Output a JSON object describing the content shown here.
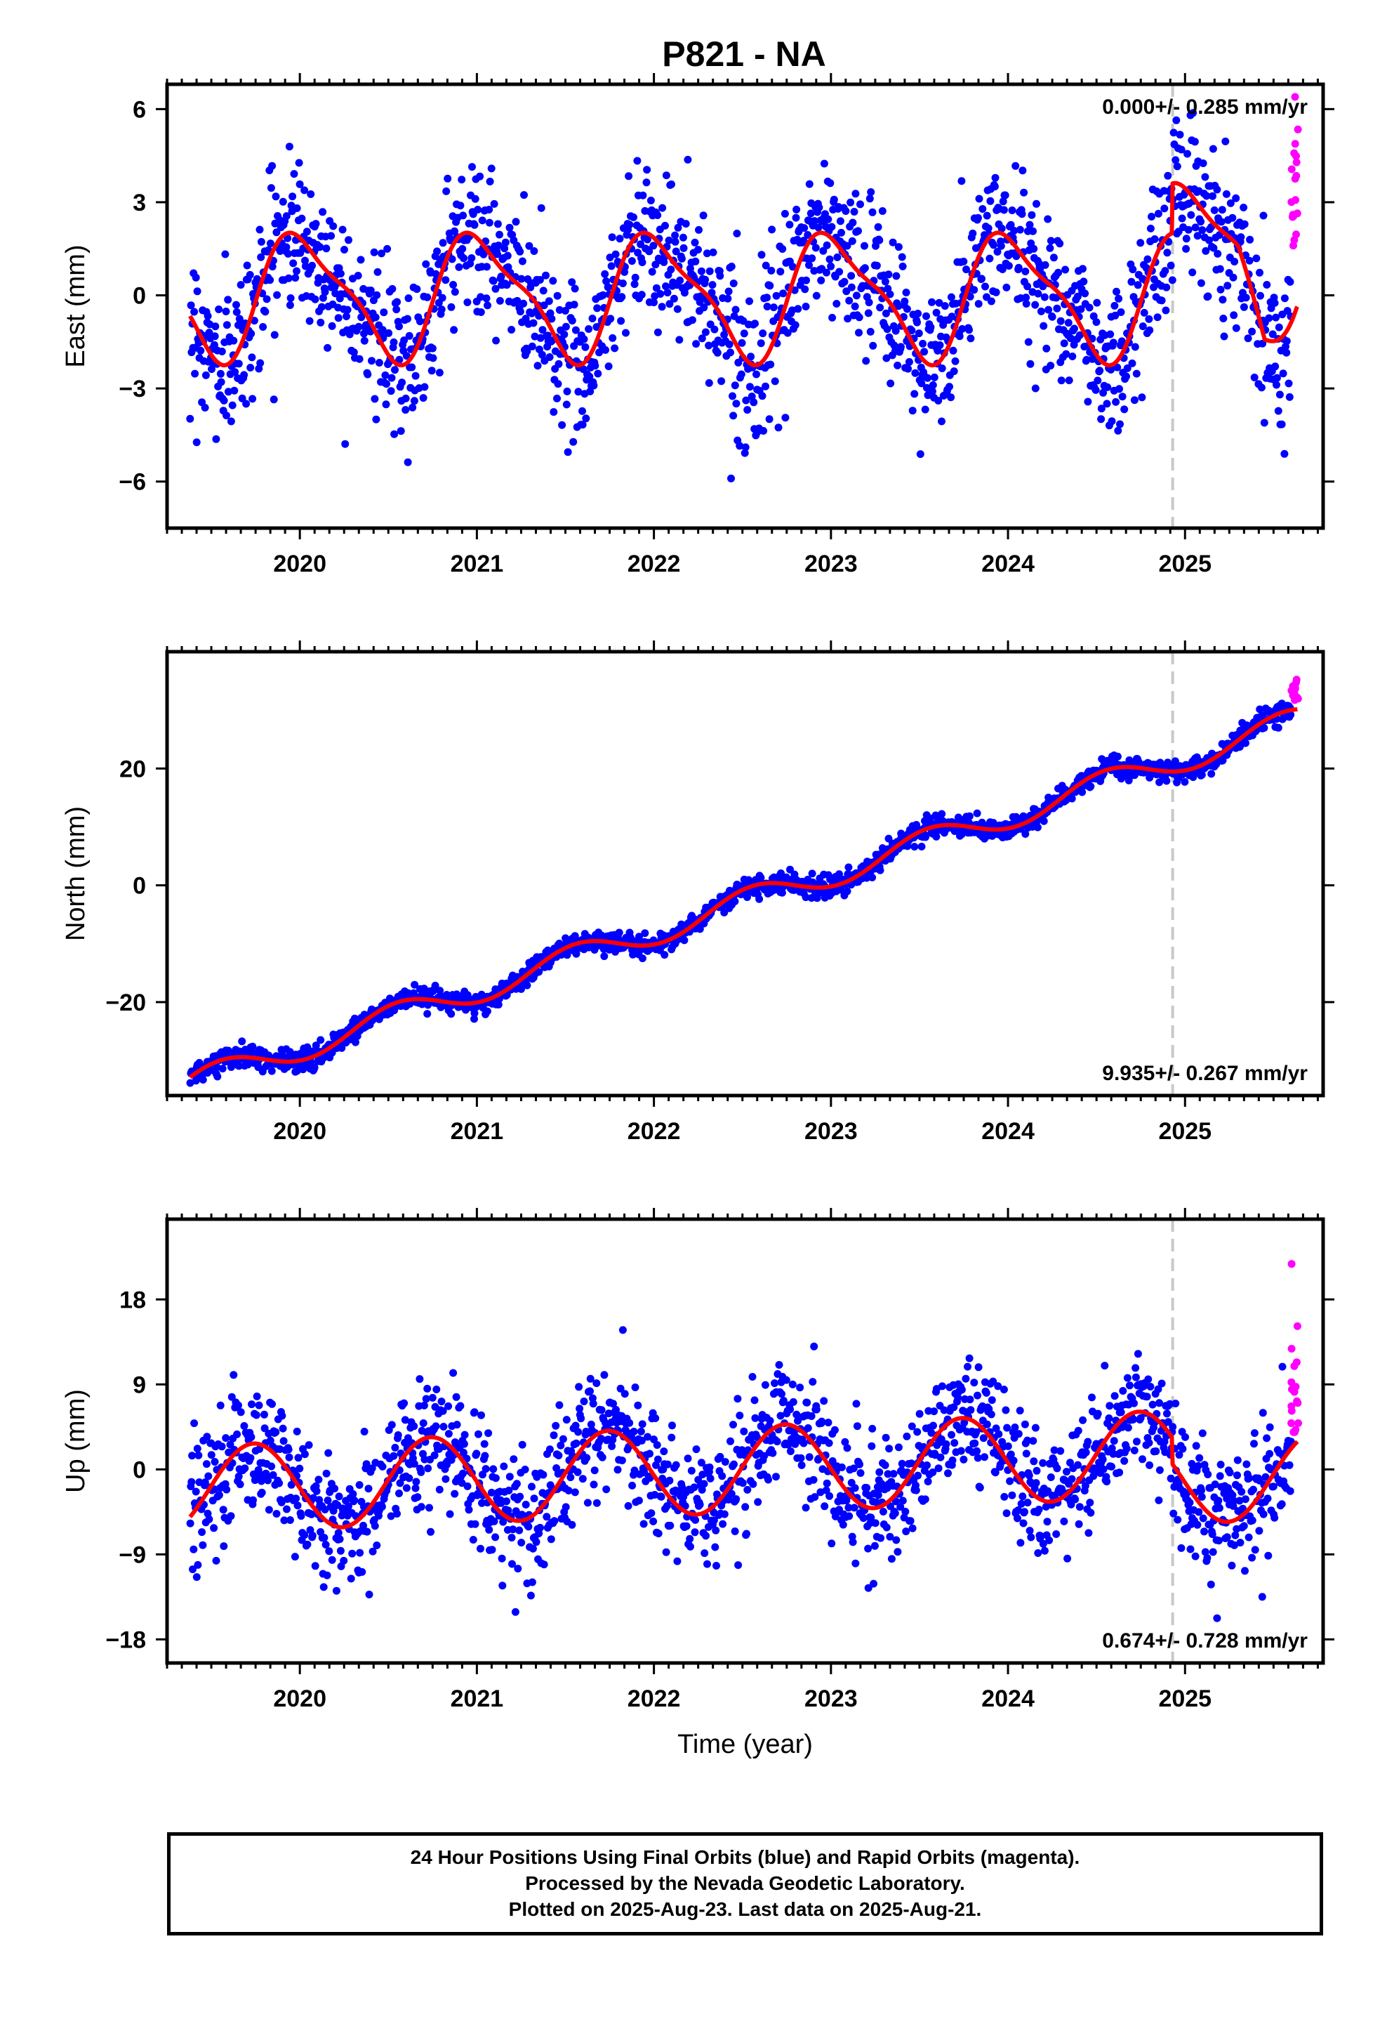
{
  "title": "P821 - NA",
  "colors": {
    "final_orbits": "#0000ff",
    "rapid_orbits": "#ff00ff",
    "model_fit": "#ff0000",
    "marker_line": "#c8c8c8",
    "axis": "#000000"
  },
  "footer": {
    "line1": "24 Hour Positions Using Final Orbits (blue) and Rapid Orbits (magenta).",
    "line2": "Processed by the Nevada Geodetic Laboratory.",
    "line3": "Plotted on 2025-Aug-23. Last data on 2025-Aug-21."
  },
  "chart_data": [
    {
      "type": "scatter",
      "component": "East",
      "ylabel": "East (mm)",
      "xlabel": "",
      "xlim": [
        2019.25,
        2025.78
      ],
      "ylim": [
        -7.5,
        6.8
      ],
      "xticks": [
        2020,
        2021,
        2022,
        2023,
        2024,
        2025
      ],
      "yticks": [
        -6,
        -3,
        0,
        3,
        6
      ],
      "rate": "0.000+/- 0.285 mm/yr",
      "rate_position": "top-right",
      "marker_x": 2024.93,
      "rapid_start": 2025.6,
      "model": {
        "trend": 0.0,
        "offset": 0.0,
        "annual_amp": 1.9,
        "annual_peak": 0.02,
        "semi_amp": 0.55,
        "semi_peak": 0.87,
        "step_epoch": 2024.93,
        "step": 1.6,
        "end_offset": -1.6
      },
      "noise_sd": 1.2,
      "series": [
        {
          "name": "Final Orbits (blue)",
          "x_range": [
            2019.38,
            2025.6
          ],
          "n_points": 1700
        },
        {
          "name": "Rapid Orbits (magenta)",
          "x_range": [
            2025.6,
            2025.64
          ],
          "n_points": 18
        }
      ]
    },
    {
      "type": "scatter",
      "component": "North",
      "ylabel": "North (mm)",
      "xlabel": "",
      "xlim": [
        2019.25,
        2025.78
      ],
      "ylim": [
        -36,
        40
      ],
      "xticks": [
        2020,
        2021,
        2022,
        2023,
        2024,
        2025
      ],
      "yticks": [
        -20,
        0,
        20
      ],
      "rate": "9.935+/- 0.267 mm/yr",
      "rate_position": "bottom-right",
      "marker_x": 2024.93,
      "rapid_start": 2025.6,
      "model": {
        "trend": 9.935,
        "offset": 0.0,
        "ref_epoch": 2022.8,
        "annual_amp": 2.3,
        "annual_peak": 0.55,
        "semi_amp": 0.0,
        "semi_peak": 0.0,
        "step_epoch": 0,
        "step": 0,
        "end_offset": 0
      },
      "noise_sd": 0.9,
      "series": [
        {
          "name": "Final Orbits (blue)",
          "x_range": [
            2019.38,
            2025.6
          ],
          "n_points": 1700
        },
        {
          "name": "Rapid Orbits (magenta)",
          "x_range": [
            2025.6,
            2025.64
          ],
          "n_points": 18
        }
      ]
    },
    {
      "type": "scatter",
      "component": "Up",
      "ylabel": "Up (mm)",
      "xlabel": "Time (year)",
      "xlim": [
        2019.25,
        2025.78
      ],
      "ylim": [
        -20.5,
        26.5
      ],
      "xticks": [
        2020,
        2021,
        2022,
        2023,
        2024,
        2025
      ],
      "yticks": [
        -18,
        -9,
        0,
        9,
        18
      ],
      "rate": "0.674+/- 0.728 mm/yr",
      "rate_position": "bottom-right",
      "marker_x": 2024.93,
      "rapid_start": 2025.6,
      "model": {
        "trend": 0.674,
        "offset": 0.0,
        "ref_epoch": 2022.5,
        "annual_amp": 4.6,
        "annual_peak": 0.74,
        "semi_amp": 0.0,
        "semi_peak": 0.0,
        "step_epoch": 2024.93,
        "step": -2.8,
        "end_offset": 0
      },
      "noise_sd": 3.3,
      "series": [
        {
          "name": "Final Orbits (blue)",
          "x_range": [
            2019.38,
            2025.6
          ],
          "n_points": 1700
        },
        {
          "name": "Rapid Orbits (magenta)",
          "x_range": [
            2025.6,
            2025.64
          ],
          "n_points": 18
        }
      ]
    }
  ]
}
